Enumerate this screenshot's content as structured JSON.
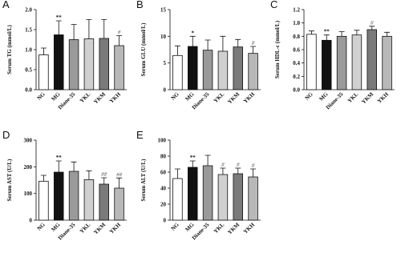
{
  "chart_data": [
    {
      "type": "bar",
      "label": "A",
      "ylabel": "Serum TG (mmol/L)",
      "categories": [
        "NG",
        "MG",
        "Diane-35",
        "YKL",
        "YKM",
        "YKH"
      ],
      "values": [
        0.87,
        1.37,
        1.25,
        1.27,
        1.28,
        1.1
      ],
      "errors": [
        0.17,
        0.35,
        0.38,
        0.48,
        0.47,
        0.25
      ],
      "annotations": [
        null,
        "**",
        null,
        null,
        null,
        "#"
      ],
      "colors": [
        "#ffffff",
        "#111111",
        "#9a9a9a",
        "#d0d0d0",
        "#7a7a7a",
        "#b8b8b8"
      ],
      "ylim": [
        0,
        2
      ],
      "yticks": [
        {
          "value": 0,
          "label": "0.0"
        },
        0.5,
        {
          "value": 1,
          "label": "1.0"
        },
        1.5,
        {
          "value": 2,
          "label": "2.0"
        }
      ]
    },
    {
      "type": "bar",
      "label": "B",
      "ylabel": "Serum GLU (mmol/L)",
      "categories": [
        "NG",
        "MG",
        "Diane-35",
        "YKL",
        "YKM",
        "YKH"
      ],
      "values": [
        6.4,
        8.1,
        7.4,
        7.2,
        8.0,
        6.8
      ],
      "errors": [
        1.8,
        1.9,
        1.9,
        2.8,
        1.4,
        1.3
      ],
      "annotations": [
        null,
        "*",
        null,
        null,
        null,
        "#"
      ],
      "colors": [
        "#ffffff",
        "#111111",
        "#9a9a9a",
        "#d0d0d0",
        "#7a7a7a",
        "#b8b8b8"
      ],
      "ylim": [
        0,
        15
      ],
      "yticks": [
        0,
        5,
        10,
        15
      ]
    },
    {
      "type": "bar",
      "label": "C",
      "ylabel": "Serum HDL-c (mmol/L)",
      "categories": [
        "NG",
        "MG",
        "Diane-35",
        "YKL",
        "YKM",
        "YKH"
      ],
      "values": [
        0.83,
        0.74,
        0.8,
        0.82,
        0.9,
        0.8
      ],
      "errors": [
        0.05,
        0.08,
        0.07,
        0.07,
        0.05,
        0.06
      ],
      "annotations": [
        null,
        "**",
        null,
        null,
        "#",
        null
      ],
      "colors": [
        "#ffffff",
        "#111111",
        "#9a9a9a",
        "#d0d0d0",
        "#7a7a7a",
        "#b8b8b8"
      ],
      "ylim": [
        0,
        1.2
      ],
      "yticks": [
        {
          "value": 0,
          "label": "0.0"
        },
        0.2,
        0.4,
        0.6,
        0.8,
        {
          "value": 1,
          "label": "1.0"
        },
        1.2
      ]
    },
    {
      "type": "bar",
      "label": "D",
      "ylabel": "Serum AST (U/L)",
      "categories": [
        "NG",
        "MG",
        "Diane-35",
        "YKL",
        "YKM",
        "YKH"
      ],
      "values": [
        146,
        180,
        183,
        152,
        135,
        120
      ],
      "errors": [
        22,
        42,
        35,
        33,
        24,
        38
      ],
      "annotations": [
        null,
        "**",
        null,
        null,
        "##",
        "##"
      ],
      "colors": [
        "#ffffff",
        "#111111",
        "#9a9a9a",
        "#d0d0d0",
        "#7a7a7a",
        "#b8b8b8"
      ],
      "ylim": [
        0,
        300
      ],
      "yticks": [
        0,
        100,
        200,
        300
      ]
    },
    {
      "type": "bar",
      "label": "E",
      "ylabel": "Serum ALT (U/L)",
      "categories": [
        "NG",
        "MG",
        "Diane-35",
        "YKL",
        "YKM",
        "YKH"
      ],
      "values": [
        52,
        66,
        68,
        57,
        58,
        54
      ],
      "errors": [
        12,
        8,
        13,
        8,
        7,
        10
      ],
      "annotations": [
        null,
        "**",
        null,
        "#",
        "#",
        "#"
      ],
      "colors": [
        "#ffffff",
        "#111111",
        "#9a9a9a",
        "#d0d0d0",
        "#7a7a7a",
        "#b8b8b8"
      ],
      "ylim": [
        0,
        100
      ],
      "yticks": [
        0,
        20,
        40,
        60,
        80,
        100
      ]
    }
  ]
}
